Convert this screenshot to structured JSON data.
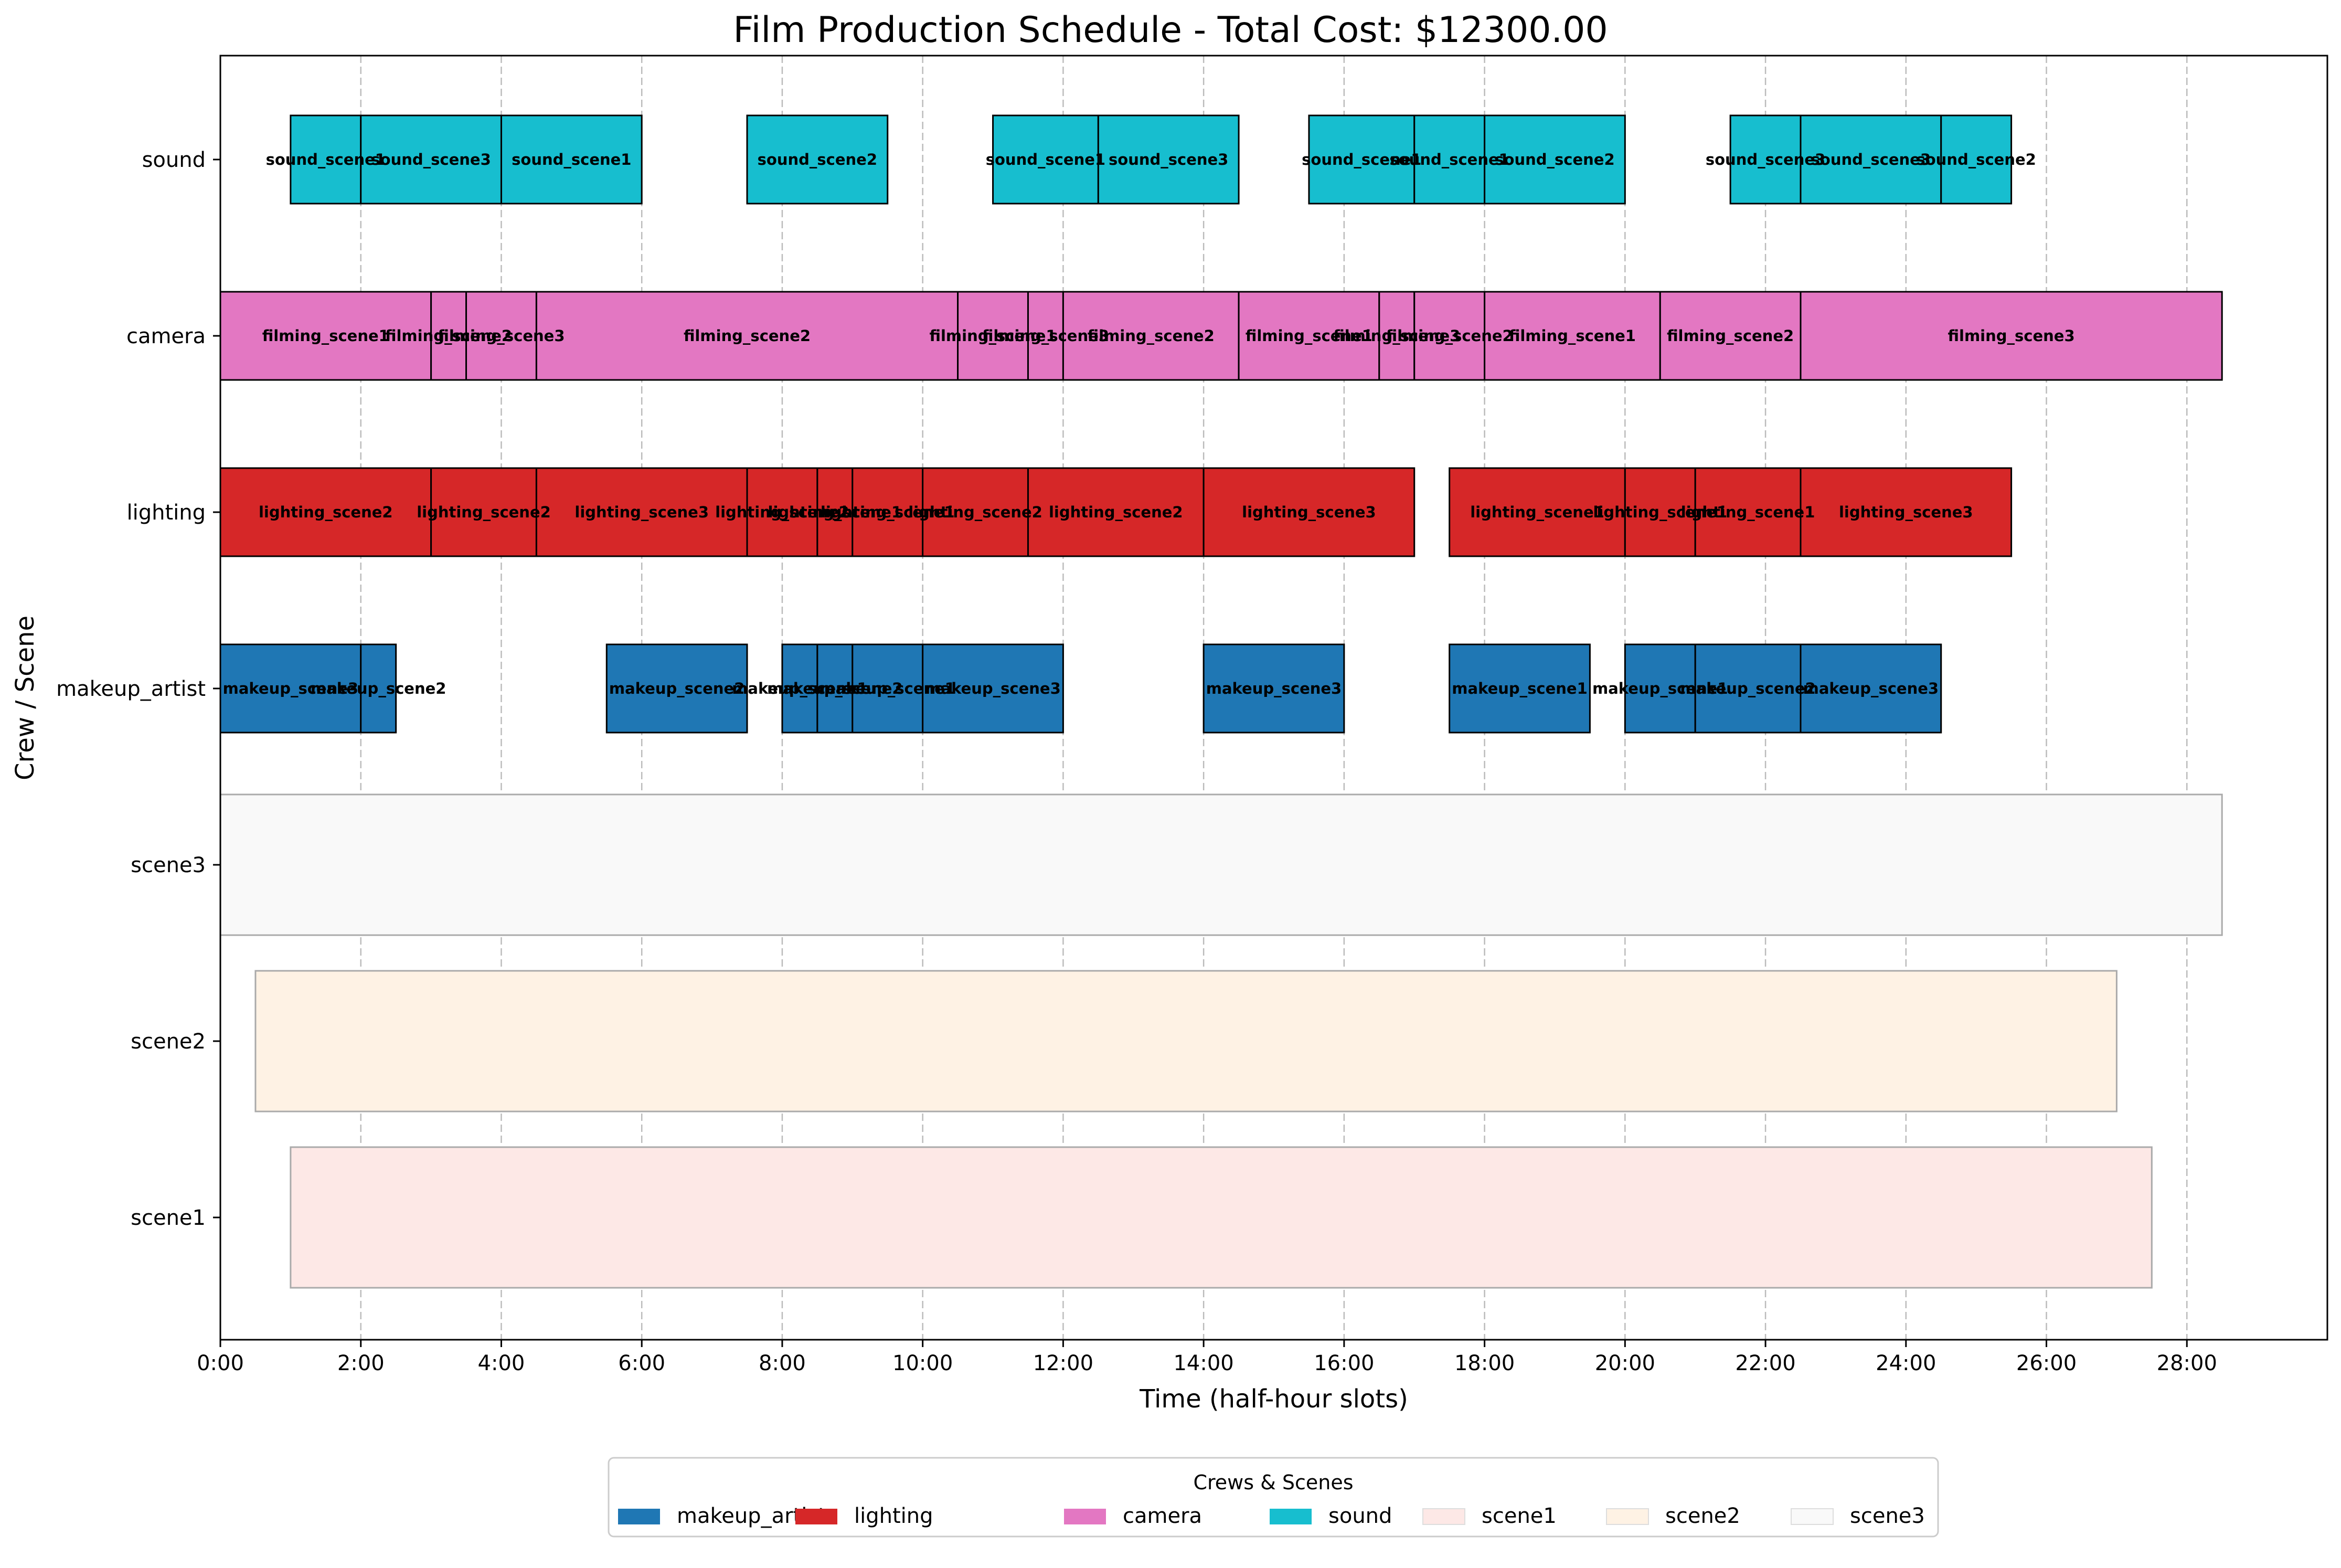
{
  "chart_data": {
    "type": "gantt",
    "title": "Film Production Schedule - Total Cost: $12300.00",
    "xlabel": "Time (half-hour slots)",
    "ylabel": "Crew / Scene",
    "xlim": [
      0,
      60
    ],
    "x_ticks": [
      {
        "slot": 0,
        "label": "0:00"
      },
      {
        "slot": 4,
        "label": "2:00"
      },
      {
        "slot": 8,
        "label": "4:00"
      },
      {
        "slot": 12,
        "label": "6:00"
      },
      {
        "slot": 16,
        "label": "8:00"
      },
      {
        "slot": 20,
        "label": "10:00"
      },
      {
        "slot": 24,
        "label": "12:00"
      },
      {
        "slot": 28,
        "label": "14:00"
      },
      {
        "slot": 32,
        "label": "16:00"
      },
      {
        "slot": 36,
        "label": "18:00"
      },
      {
        "slot": 40,
        "label": "20:00"
      },
      {
        "slot": 44,
        "label": "22:00"
      },
      {
        "slot": 48,
        "label": "24:00"
      },
      {
        "slot": 52,
        "label": "26:00"
      },
      {
        "slot": 56,
        "label": "28:00"
      }
    ],
    "grid": "vertical dashed",
    "rows": [
      "sound",
      "camera",
      "lighting",
      "makeup_artist",
      "scene3",
      "scene2",
      "scene1"
    ],
    "colors": {
      "makeup_artist": "#1f77b4",
      "lighting": "#d62728",
      "camera": "#e377c2",
      "sound": "#17becf",
      "scene1": "#fde8e6",
      "scene2": "#fef2e4",
      "scene3": "#f9f9f9"
    },
    "scenes": [
      {
        "name": "scene3",
        "start": 0,
        "end": 57
      },
      {
        "name": "scene2",
        "start": 1,
        "end": 54
      },
      {
        "name": "scene1",
        "start": 2,
        "end": 55
      }
    ],
    "tasks": {
      "sound": [
        {
          "start": 2,
          "end": 4,
          "label": "sound_scene1"
        },
        {
          "start": 4,
          "end": 8,
          "label": "sound_scene3"
        },
        {
          "start": 8,
          "end": 12,
          "label": "sound_scene1"
        },
        {
          "start": 15,
          "end": 19,
          "label": "sound_scene2"
        },
        {
          "start": 22,
          "end": 25,
          "label": "sound_scene1"
        },
        {
          "start": 25,
          "end": 29,
          "label": "sound_scene3"
        },
        {
          "start": 31,
          "end": 34,
          "label": "sound_scene1"
        },
        {
          "start": 34,
          "end": 36,
          "label": "sound_scene1"
        },
        {
          "start": 36,
          "end": 40,
          "label": "sound_scene2"
        },
        {
          "start": 43,
          "end": 45,
          "label": "sound_scene3"
        },
        {
          "start": 45,
          "end": 49,
          "label": "sound_scene3"
        },
        {
          "start": 49,
          "end": 51,
          "label": "sound_scene2"
        }
      ],
      "camera": [
        {
          "start": 0,
          "end": 6,
          "label": "filming_scene1"
        },
        {
          "start": 6,
          "end": 7,
          "label": "filming_scene2"
        },
        {
          "start": 7,
          "end": 9,
          "label": "filming_scene3"
        },
        {
          "start": 9,
          "end": 21,
          "label": "filming_scene2"
        },
        {
          "start": 21,
          "end": 23,
          "label": "filming_scene1"
        },
        {
          "start": 23,
          "end": 24,
          "label": "filming_scene3"
        },
        {
          "start": 24,
          "end": 29,
          "label": "filming_scene2"
        },
        {
          "start": 29,
          "end": 33,
          "label": "filming_scene1"
        },
        {
          "start": 33,
          "end": 34,
          "label": "filming_scene3"
        },
        {
          "start": 34,
          "end": 36,
          "label": "filming_scene2"
        },
        {
          "start": 36,
          "end": 41,
          "label": "filming_scene1"
        },
        {
          "start": 41,
          "end": 45,
          "label": "filming_scene2"
        },
        {
          "start": 45,
          "end": 57,
          "label": "filming_scene3"
        }
      ],
      "lighting": [
        {
          "start": 0,
          "end": 6,
          "label": "lighting_scene2"
        },
        {
          "start": 6,
          "end": 9,
          "label": "lighting_scene2"
        },
        {
          "start": 9,
          "end": 15,
          "label": "lighting_scene3"
        },
        {
          "start": 15,
          "end": 17,
          "label": "lighting_scene2"
        },
        {
          "start": 17,
          "end": 18,
          "label": "lighting_scene1"
        },
        {
          "start": 18,
          "end": 20,
          "label": "lighting_scene1"
        },
        {
          "start": 20,
          "end": 23,
          "label": "lighting_scene2"
        },
        {
          "start": 23,
          "end": 28,
          "label": "lighting_scene2"
        },
        {
          "start": 28,
          "end": 34,
          "label": "lighting_scene3"
        },
        {
          "start": 35,
          "end": 40,
          "label": "lighting_scene1"
        },
        {
          "start": 40,
          "end": 42,
          "label": "lighting_scene1"
        },
        {
          "start": 42,
          "end": 45,
          "label": "lighting_scene1"
        },
        {
          "start": 45,
          "end": 51,
          "label": "lighting_scene3"
        }
      ],
      "makeup_artist": [
        {
          "start": 0,
          "end": 4,
          "label": "makeup_scene3"
        },
        {
          "start": 4,
          "end": 5,
          "label": "makeup_scene2"
        },
        {
          "start": 11,
          "end": 15,
          "label": "makeup_scene2"
        },
        {
          "start": 16,
          "end": 17,
          "label": "makeup_scene1"
        },
        {
          "start": 17,
          "end": 18,
          "label": "makeup_scene2"
        },
        {
          "start": 18,
          "end": 20,
          "label": "makeup_scene1"
        },
        {
          "start": 20,
          "end": 24,
          "label": "makeup_scene3"
        },
        {
          "start": 28,
          "end": 32,
          "label": "makeup_scene3"
        },
        {
          "start": 35,
          "end": 39,
          "label": "makeup_scene1"
        },
        {
          "start": 40,
          "end": 42,
          "label": "makeup_scene1"
        },
        {
          "start": 42,
          "end": 45,
          "label": "makeup_scene2"
        },
        {
          "start": 45,
          "end": 49,
          "label": "makeup_scene3"
        }
      ]
    },
    "legend": {
      "title": "Crews & Scenes",
      "placement": "bottom-center",
      "items": [
        "makeup_artist",
        "lighting",
        "camera",
        "sound",
        "scene1",
        "scene2",
        "scene3"
      ]
    }
  }
}
